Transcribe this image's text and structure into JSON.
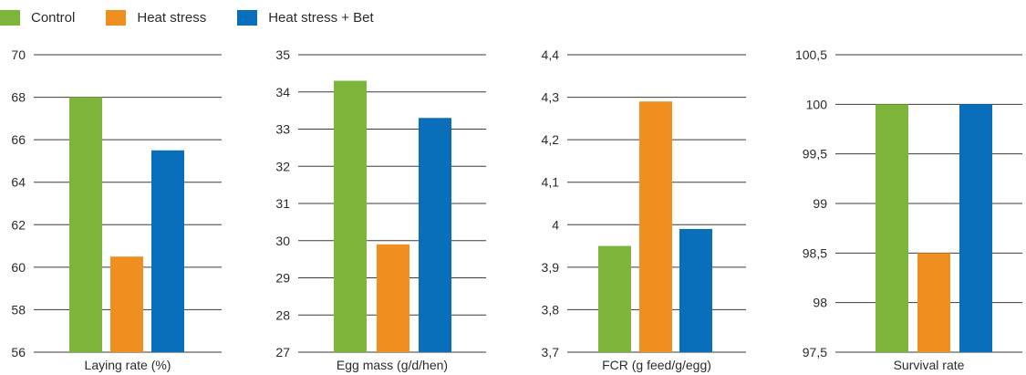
{
  "legend": [
    {
      "label": "Control",
      "color": "#7db53a"
    },
    {
      "label": "Heat stress",
      "color": "#ee8f1f"
    },
    {
      "label": "Heat stress + Bet",
      "color": "#0a6fba"
    }
  ],
  "chart_data": [
    {
      "type": "bar",
      "xlabel": "Laying rate (%)",
      "ylim": [
        56,
        70
      ],
      "yticks": [
        "70",
        "68",
        "66",
        "64",
        "62",
        "60",
        "58",
        "56"
      ],
      "series": [
        {
          "name": "Control",
          "values": [
            68.0
          ]
        },
        {
          "name": "Heat stress",
          "values": [
            60.5
          ]
        },
        {
          "name": "Heat stress + Bet",
          "values": [
            65.5
          ]
        }
      ],
      "grid": true
    },
    {
      "type": "bar",
      "xlabel": "Egg mass (g/d/hen)",
      "ylim": [
        27,
        35
      ],
      "yticks": [
        "35",
        "34",
        "33",
        "32",
        "31",
        "30",
        "29",
        "28",
        "27"
      ],
      "series": [
        {
          "name": "Control",
          "values": [
            34.3
          ]
        },
        {
          "name": "Heat stress",
          "values": [
            29.9
          ]
        },
        {
          "name": "Heat stress + Bet",
          "values": [
            33.3
          ]
        }
      ],
      "grid": true
    },
    {
      "type": "bar",
      "xlabel": "FCR (g feed/g/egg)",
      "ylim": [
        3.7,
        4.4
      ],
      "yticks": [
        "4,4",
        "4,3",
        "4,2",
        "4,1",
        "4",
        "3,9",
        "3,8",
        "3,7"
      ],
      "series": [
        {
          "name": "Control",
          "values": [
            3.95
          ]
        },
        {
          "name": "Heat stress",
          "values": [
            4.29
          ]
        },
        {
          "name": "Heat stress + Bet",
          "values": [
            3.99
          ]
        }
      ],
      "grid": true
    },
    {
      "type": "bar",
      "xlabel": "Survival rate",
      "ylim": [
        97.5,
        100.5
      ],
      "yticks": [
        "100,5",
        "100",
        "99,5",
        "99",
        "98,5",
        "98",
        "97,5"
      ],
      "series": [
        {
          "name": "Control",
          "values": [
            100.0
          ]
        },
        {
          "name": "Heat stress",
          "values": [
            98.5
          ]
        },
        {
          "name": "Heat stress + Bet",
          "values": [
            100.0
          ]
        }
      ],
      "grid": true
    }
  ]
}
